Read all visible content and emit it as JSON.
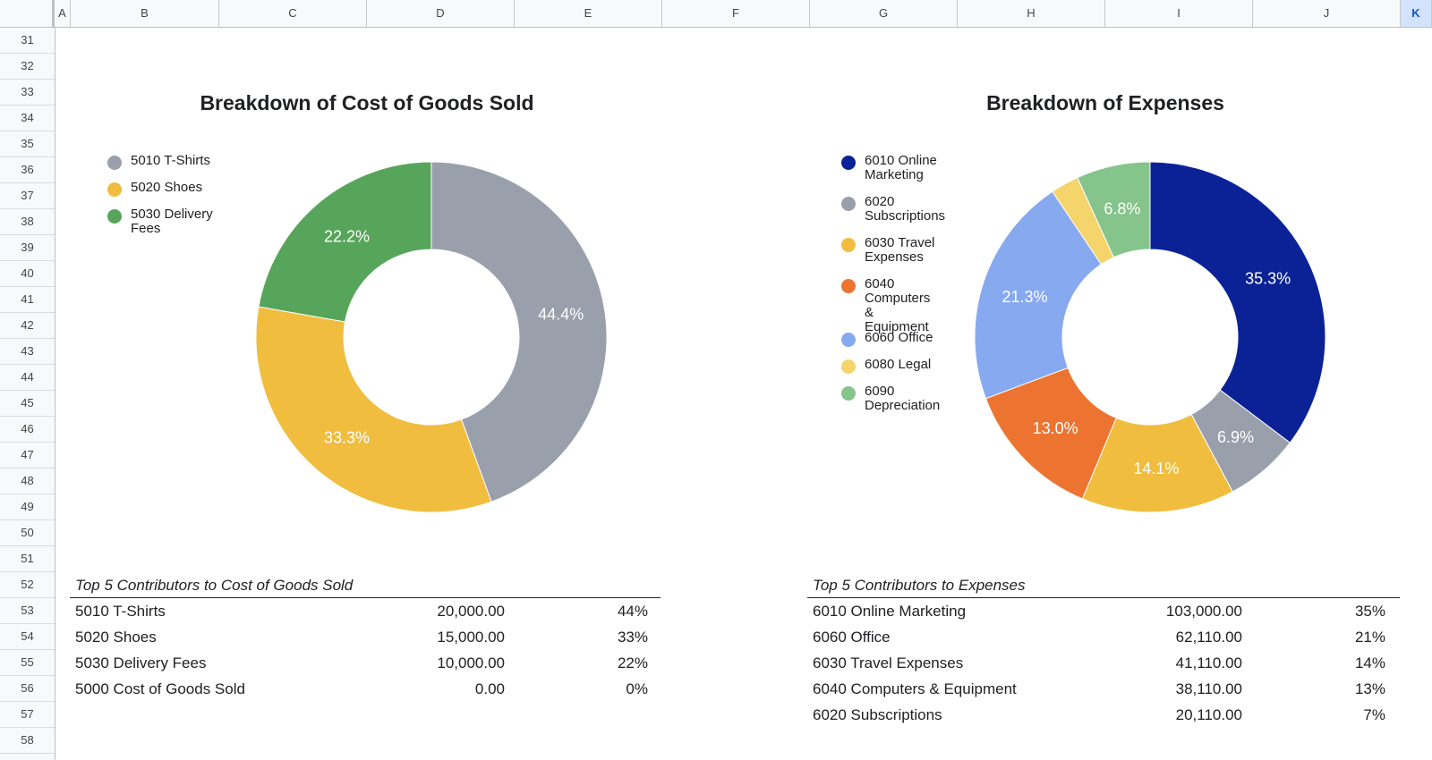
{
  "columns": [
    "A",
    "B",
    "C",
    "D",
    "E",
    "F",
    "G",
    "H",
    "I",
    "J",
    "K"
  ],
  "selected_column": "K",
  "rows": [
    "31",
    "32",
    "33",
    "34",
    "35",
    "36",
    "37",
    "38",
    "39",
    "40",
    "41",
    "42",
    "43",
    "44",
    "45",
    "46",
    "47",
    "48",
    "49",
    "50",
    "51",
    "52",
    "53",
    "54",
    "55",
    "56",
    "57",
    "58"
  ],
  "charts": [
    {
      "title": "Breakdown of Cost of Goods Sold",
      "legend": [
        {
          "label": "5010 T-Shirts",
          "color": "#9aa0ab"
        },
        {
          "label": "5020 Shoes",
          "color": "#f0bd3f"
        },
        {
          "label": "5030 Delivery Fees",
          "color": "#57a55a"
        }
      ]
    },
    {
      "title": "Breakdown of Expenses",
      "legend": [
        {
          "label": "6010 Online Marketing",
          "color": "#0b2296"
        },
        {
          "label": "6020 Subscriptions",
          "color": "#9aa0ab"
        },
        {
          "label": "6030 Travel Expenses",
          "color": "#f0bd3f"
        },
        {
          "label": "6040 Computers & Equipment",
          "color": "#ec7430"
        },
        {
          "label": "6060 Office",
          "color": "#87a9f0"
        },
        {
          "label": "6080 Legal",
          "color": "#f5d46b"
        },
        {
          "label": "6090 Depreciation",
          "color": "#85c48a"
        }
      ]
    }
  ],
  "chart_data": [
    {
      "type": "pie",
      "donut": true,
      "title": "Breakdown of Cost of Goods Sold",
      "legend_position": "left",
      "categories": [
        "5010 T-Shirts",
        "5020 Shoes",
        "5030 Delivery Fees"
      ],
      "values": [
        44.4,
        33.3,
        22.2
      ],
      "labels": [
        "44.4%",
        "33.3%",
        "22.2%"
      ],
      "colors": [
        "#9aa0ab",
        "#f0bd3f",
        "#57a55a"
      ]
    },
    {
      "type": "pie",
      "donut": true,
      "title": "Breakdown of Expenses",
      "legend_position": "left",
      "categories": [
        "6010 Online Marketing",
        "6020 Subscriptions",
        "6030 Travel Expenses",
        "6040 Computers & Equipment",
        "6060 Office",
        "6080 Legal",
        "6090 Depreciation"
      ],
      "values": [
        35.3,
        6.9,
        14.1,
        13.0,
        21.3,
        2.6,
        6.8
      ],
      "labels": [
        "35.3%",
        "6.9%",
        "14.1%",
        "13.0%",
        "21.3%",
        "",
        "6.8%"
      ],
      "colors": [
        "#0b2296",
        "#9aa0ab",
        "#f0bd3f",
        "#ec7430",
        "#87a9f0",
        "#f5d46b",
        "#85c48a"
      ]
    }
  ],
  "tables": [
    {
      "caption": "Top 5 Contributors to Cost of Goods Sold",
      "rows": [
        {
          "name": "5010 T-Shirts",
          "amount": "20,000.00",
          "pct": "44%"
        },
        {
          "name": "5020 Shoes",
          "amount": "15,000.00",
          "pct": "33%"
        },
        {
          "name": "5030 Delivery Fees",
          "amount": "10,000.00",
          "pct": "22%"
        },
        {
          "name": "5000 Cost of Goods Sold",
          "amount": "0.00",
          "pct": "0%"
        }
      ]
    },
    {
      "caption": "Top 5 Contributors to Expenses",
      "rows": [
        {
          "name": "6010 Online Marketing",
          "amount": "103,000.00",
          "pct": "35%"
        },
        {
          "name": "6060 Office",
          "amount": "62,110.00",
          "pct": "21%"
        },
        {
          "name": "6030 Travel Expenses",
          "amount": "41,110.00",
          "pct": "14%"
        },
        {
          "name": "6040 Computers & Equipment",
          "amount": "38,110.00",
          "pct": "13%"
        },
        {
          "name": "6020 Subscriptions",
          "amount": "20,110.00",
          "pct": "7%"
        }
      ]
    }
  ]
}
